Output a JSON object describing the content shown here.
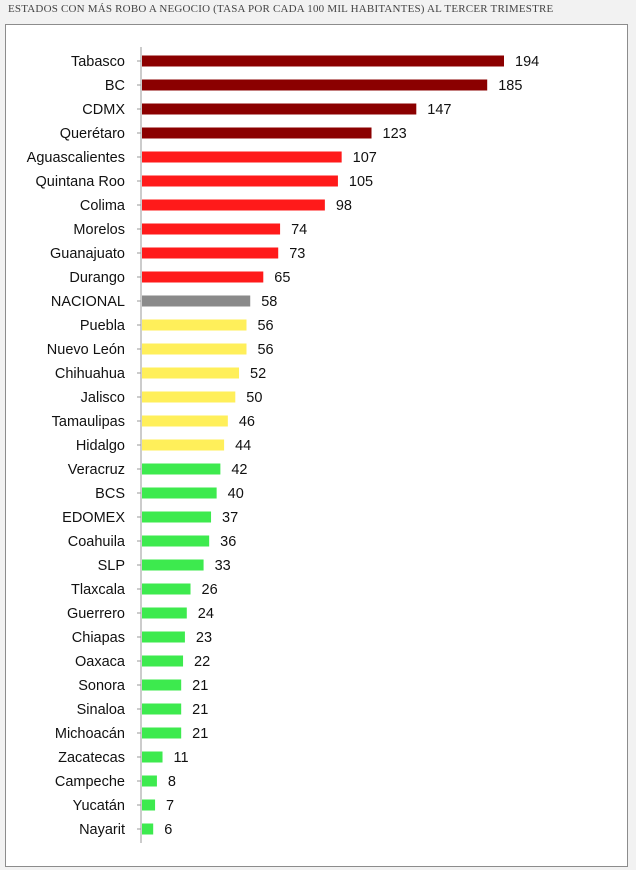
{
  "title": "ESTADOS CON MÁS ROBO A NEGOCIO (TASA POR CADA 100 MIL HABITANTES) AL TERCER TRIMESTRE",
  "chart_data": {
    "type": "bar",
    "orientation": "horizontal",
    "title": "ESTADOS CON MÁS ROBO A NEGOCIO (TASA POR CADA 100 MIL HABITANTES) AL TERCER TRIMESTRE",
    "xlabel": "",
    "ylabel": "",
    "xlim": [
      0,
      194
    ],
    "grid": false,
    "legend": "none",
    "colors": {
      "dark_red": "#8b0000",
      "red": "#ff1a1a",
      "gray": "#8a8a8a",
      "yellow": "#ffef5a",
      "green": "#3dea4e"
    },
    "categories": [
      "Tabasco",
      "BC",
      "CDMX",
      "Querétaro",
      "Aguascalientes",
      "Quintana Roo",
      "Colima",
      "Morelos",
      "Guanajuato",
      "Durango",
      "NACIONAL",
      "Puebla",
      "Nuevo León",
      "Chihuahua",
      "Jalisco",
      "Tamaulipas",
      "Hidalgo",
      "Veracruz",
      "BCS",
      "EDOMEX",
      "Coahuila",
      "SLP",
      "Tlaxcala",
      "Guerrero",
      "Chiapas",
      "Oaxaca",
      "Sonora",
      "Sinaloa",
      "Michoacán",
      "Zacatecas",
      "Campeche",
      "Yucatán",
      "Nayarit"
    ],
    "values": [
      194,
      185,
      147,
      123,
      107,
      105,
      98,
      74,
      73,
      65,
      58,
      56,
      56,
      52,
      50,
      46,
      44,
      42,
      40,
      37,
      36,
      33,
      26,
      24,
      23,
      22,
      21,
      21,
      21,
      11,
      8,
      7,
      6
    ],
    "bar_colors": [
      "dark_red",
      "dark_red",
      "dark_red",
      "dark_red",
      "red",
      "red",
      "red",
      "red",
      "red",
      "red",
      "gray",
      "yellow",
      "yellow",
      "yellow",
      "yellow",
      "yellow",
      "yellow",
      "green",
      "green",
      "green",
      "green",
      "green",
      "green",
      "green",
      "green",
      "green",
      "green",
      "green",
      "green",
      "green",
      "green",
      "green",
      "green"
    ]
  }
}
